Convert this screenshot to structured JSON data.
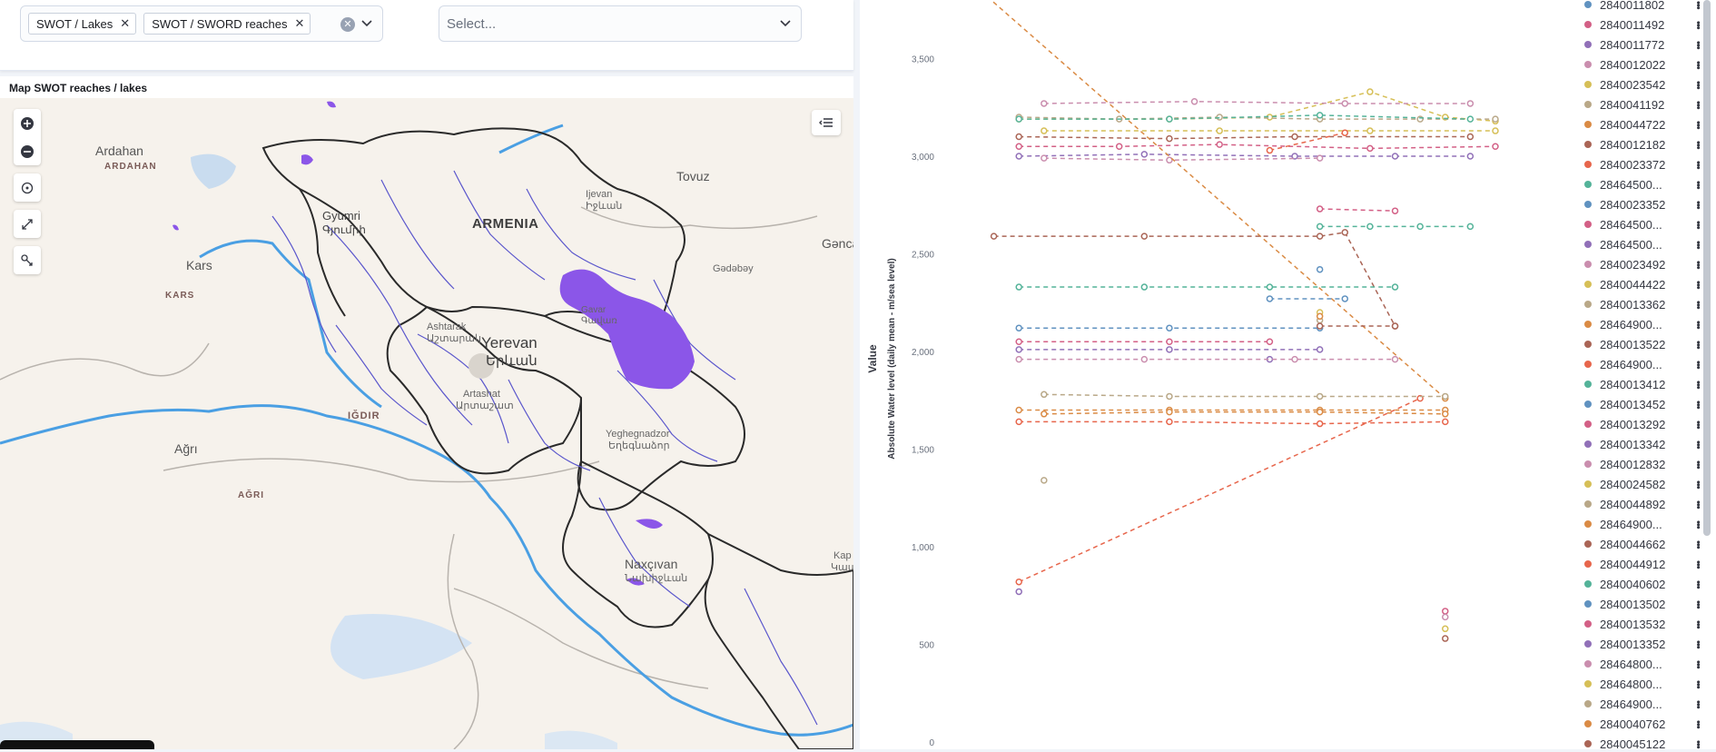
{
  "filters": {
    "layer_pills": [
      "SWOT / Lakes",
      "SWOT / SWORD reaches"
    ],
    "second_select": {
      "placeholder": "Select..."
    }
  },
  "map": {
    "title": "Map SWOT reaches / lakes",
    "place_labels": {
      "ardahan": "Ardahan",
      "ardahan_region": "ARDAHAN",
      "gyumri": "Gyumri",
      "gyumri_arm": "Գյումրի",
      "armenia": "ARMENIA",
      "ijevan": "Ijevan",
      "ijevan_arm": "Իջևան",
      "tovuz": "Tovuz",
      "kars": "Kars",
      "kars_region": "KARS",
      "gadabay": "Gədəbəy",
      "ganca": "Gənca",
      "ashtarak": "Ashtarak",
      "ashtarak_arm": "Աշտարակ",
      "yerevan": "Yerevan",
      "yerevan_arm": "Երևան",
      "gavar": "Gavar",
      "gavar_arm": "Գավառ",
      "artashat": "Artashat",
      "artashat_arm": "Արտաշատ",
      "igdir": "IĞDIR",
      "agri": "Ağrı",
      "agri_region": "AĞRI",
      "yeghegnadzor": "Yeghegnadzor",
      "yeghegnadzor_arm": "Եղեգնաձոր",
      "naxcivan": "Naxçıvan",
      "naxcivan_arm": "Նախիջևան",
      "kap": "Kap",
      "kap_arm": "Կապ"
    }
  },
  "chart_data": {
    "type": "line",
    "ylabel": "Value",
    "ylabel_secondary": "Absolute Water level (daily mean - m/sea level)",
    "y_ticks": [
      "0",
      "500",
      "1,000",
      "1,500",
      "2,000",
      "2,500",
      "3,000",
      "3,500"
    ],
    "ylim": [
      0,
      3800
    ],
    "grid": false,
    "legend_position": "right",
    "series": [
      {
        "name": "2840011802",
        "color": "#6092c0",
        "x": [],
        "values": []
      },
      {
        "name": "2840011492",
        "color": "#d36086",
        "x": [
          2,
          6,
          10,
          16,
          21
        ],
        "values": [
          3050,
          3050,
          3060,
          3040,
          3050
        ]
      },
      {
        "name": "2840011772",
        "color": "#9170b8",
        "x": [
          2,
          7,
          13,
          17,
          20
        ],
        "values": [
          3000,
          3010,
          3000,
          3000,
          3000
        ]
      },
      {
        "name": "2840012022",
        "color": "#ca8eae",
        "x": [
          3,
          8,
          14
        ],
        "values": [
          2990,
          2980,
          2990
        ]
      },
      {
        "name": "2840023542",
        "color": "#d6bf57",
        "x": [
          2,
          8,
          12,
          16,
          19,
          21
        ],
        "values": [
          3190,
          3190,
          3200,
          3330,
          3200,
          3180
        ]
      },
      {
        "name": "2840041192",
        "color": "#b9a888",
        "x": [
          2,
          6,
          10,
          14,
          18,
          21
        ],
        "values": [
          3200,
          3190,
          3200,
          3190,
          3190,
          3190
        ]
      },
      {
        "name": "2840044722",
        "color": "#da8b45",
        "x": [
          0,
          19
        ],
        "values": [
          3900,
          1760
        ]
      },
      {
        "name": "2840012182",
        "color": "#aa6556",
        "x": [
          1,
          7,
          14,
          15,
          17
        ],
        "values": [
          2590,
          2590,
          2590,
          2610,
          2130
        ]
      },
      {
        "name": "2840023372",
        "color": "#e7664c",
        "x": [
          2,
          18
        ],
        "values": [
          820,
          1760
        ]
      },
      {
        "name": "28464500...",
        "color": "#54b399",
        "x": [
          14,
          16,
          18,
          20
        ],
        "values": [
          2640,
          2640,
          2640,
          2640
        ]
      },
      {
        "name": "2840023352",
        "color": "#6092c0",
        "x": [
          2,
          8,
          14
        ],
        "values": [
          2120,
          2120,
          2120
        ]
      },
      {
        "name": "28464500...",
        "color": "#d36086",
        "x": [
          14,
          17
        ],
        "values": [
          2730,
          2720
        ]
      },
      {
        "name": "28464500...",
        "color": "#9170b8",
        "x": [
          2,
          8,
          14
        ],
        "values": [
          2010,
          2010,
          2010
        ]
      },
      {
        "name": "2840023492",
        "color": "#ca8eae",
        "x": [
          3,
          9,
          15,
          20
        ],
        "values": [
          3270,
          3280,
          3270,
          3270
        ]
      },
      {
        "name": "2840044422",
        "color": "#d6bf57",
        "x": [
          3,
          10,
          16,
          21
        ],
        "values": [
          3130,
          3130,
          3130,
          3130
        ]
      },
      {
        "name": "2840013362",
        "color": "#b9a888",
        "x": [
          3,
          8,
          14,
          19
        ],
        "values": [
          1780,
          1770,
          1770,
          1770
        ]
      },
      {
        "name": "28464900...",
        "color": "#da8b45",
        "x": [
          2,
          8,
          14,
          19
        ],
        "values": [
          1700,
          1700,
          1700,
          1700
        ]
      },
      {
        "name": "2840013522",
        "color": "#aa6556",
        "x": [
          2,
          8,
          13,
          20
        ],
        "values": [
          3100,
          3090,
          3100,
          3100
        ]
      },
      {
        "name": "28464900...",
        "color": "#e7664c",
        "x": [
          2,
          8,
          14,
          19
        ],
        "values": [
          1640,
          1640,
          1630,
          1640
        ]
      },
      {
        "name": "2840013412",
        "color": "#54b399",
        "x": [
          2,
          7,
          12,
          17
        ],
        "values": [
          2330,
          2330,
          2330,
          2330
        ]
      },
      {
        "name": "2840013452",
        "color": "#6092c0",
        "x": [
          14
        ],
        "values": [
          2420
        ]
      },
      {
        "name": "2840013292",
        "color": "#d36086",
        "x": [
          2,
          8,
          12
        ],
        "values": [
          2050,
          2050,
          2050
        ]
      },
      {
        "name": "2840013342",
        "color": "#9170b8",
        "x": [
          12
        ],
        "values": [
          1960
        ]
      },
      {
        "name": "2840012832",
        "color": "#ca8eae",
        "x": [
          2,
          7,
          13,
          17
        ],
        "values": [
          1960,
          1960,
          1960,
          1960
        ]
      },
      {
        "name": "2840024582",
        "color": "#d6bf57",
        "x": [
          14
        ],
        "values": [
          2200
        ]
      },
      {
        "name": "2840044892",
        "color": "#b9a888",
        "x": [
          14
        ],
        "values": [
          2160
        ]
      },
      {
        "name": "28464900...",
        "color": "#da8b45",
        "x": [
          14
        ],
        "values": [
          2180
        ]
      },
      {
        "name": "2840044662",
        "color": "#aa6556",
        "x": [
          14,
          17
        ],
        "values": [
          2130,
          2130
        ]
      },
      {
        "name": "2840044912",
        "color": "#e7664c",
        "x": [
          12,
          15
        ],
        "values": [
          3030,
          3120
        ]
      },
      {
        "name": "2840040602",
        "color": "#54b399",
        "x": [
          2,
          8,
          14,
          20
        ],
        "values": [
          3190,
          3190,
          3210,
          3190
        ]
      },
      {
        "name": "2840013502",
        "color": "#6092c0",
        "x": [
          12,
          15
        ],
        "values": [
          2270,
          2270
        ]
      },
      {
        "name": "2840013532",
        "color": "#d36086",
        "x": [
          19
        ],
        "values": [
          670
        ]
      },
      {
        "name": "2840013352",
        "color": "#9170b8",
        "x": [
          2
        ],
        "values": [
          770
        ]
      },
      {
        "name": "28464800...",
        "color": "#ca8eae",
        "x": [
          19
        ],
        "values": [
          640
        ]
      },
      {
        "name": "28464800...",
        "color": "#d6bf57",
        "x": [
          19
        ],
        "values": [
          580
        ]
      },
      {
        "name": "28464900...",
        "color": "#b9a888",
        "x": [
          3
        ],
        "values": [
          1340
        ]
      },
      {
        "name": "2840040762",
        "color": "#da8b45",
        "x": [
          3,
          8,
          14,
          19
        ],
        "values": [
          1680,
          1690,
          1690,
          1680
        ]
      },
      {
        "name": "2840045122",
        "color": "#aa6556",
        "x": [
          19
        ],
        "values": [
          530
        ]
      }
    ]
  }
}
